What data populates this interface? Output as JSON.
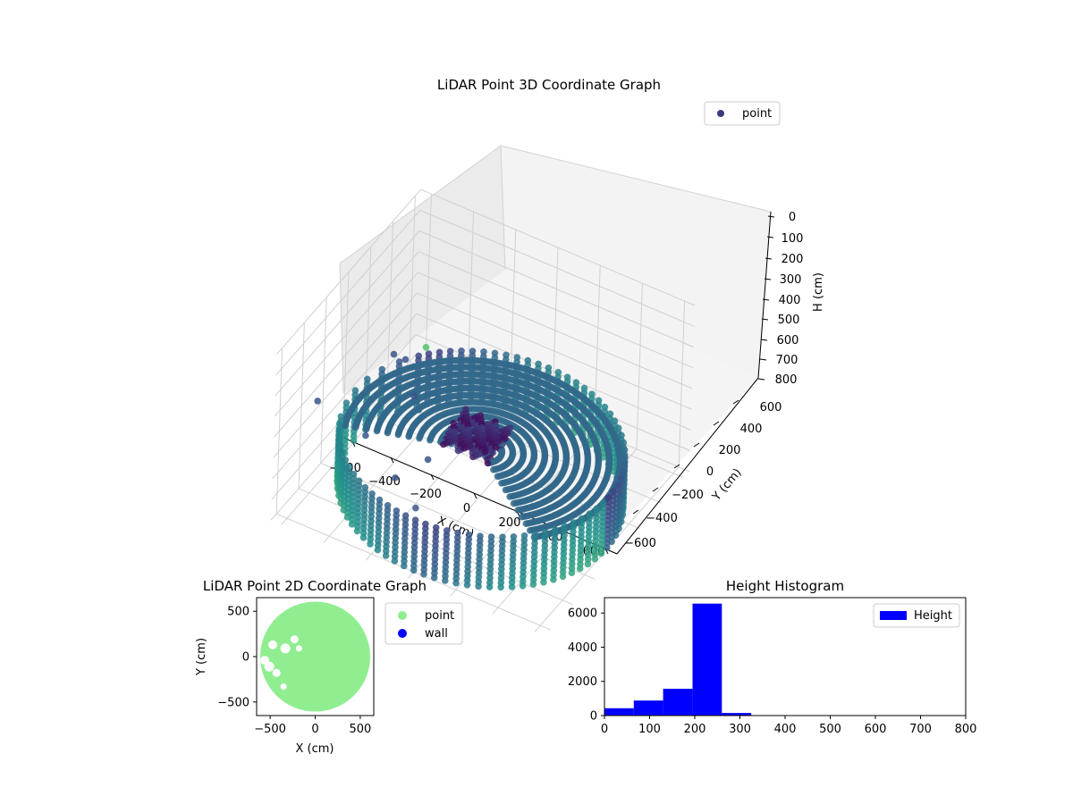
{
  "chart_data": [
    {
      "type": "scatter",
      "projection": "3d",
      "title": "LiDAR Point 3D Coordinate Graph",
      "xlabel": "X (cm)",
      "ylabel": "Y (cm)",
      "zlabel": "H (cm)",
      "xlim": [
        -650,
        650
      ],
      "ylim": [
        -650,
        650
      ],
      "zlim": [
        800,
        0
      ],
      "x_ticks": [
        "−600",
        "−400",
        "−200",
        "0",
        "200",
        "400",
        "600"
      ],
      "y_ticks": [
        "−600",
        "−400",
        "−200",
        "0",
        "200",
        "400",
        "600"
      ],
      "z_ticks": [
        "0",
        "100",
        "200",
        "300",
        "400",
        "500",
        "600",
        "700",
        "800"
      ],
      "series": [
        {
          "name": "point",
          "color": "#3b3a7e"
        }
      ],
      "legend_placement": "top-right",
      "colormap": "viridis",
      "grid": true,
      "wall_radius": 600,
      "wall_height_range": [
        0,
        250
      ],
      "point_height_cm": 220
    },
    {
      "type": "scatter",
      "title": "LiDAR Point 2D Coordinate Graph",
      "xlabel": "X (cm)",
      "ylabel": "Y (cm)",
      "xlim": [
        -650,
        650
      ],
      "ylim": [
        -650,
        650
      ],
      "x_ticks": [
        "−500",
        "0",
        "500"
      ],
      "y_ticks": [
        "500",
        "0",
        "−500"
      ],
      "series": [
        {
          "name": "point",
          "color": "#90ee90"
        },
        {
          "name": "wall",
          "color": "#0000ff"
        }
      ],
      "legend_placement": "outside-right",
      "region_radius": 610
    },
    {
      "type": "bar",
      "subtype": "histogram",
      "title": "Height Histogram",
      "xlim": [
        0,
        800
      ],
      "ylim": [
        0,
        6900
      ],
      "x_ticks": [
        "0",
        "100",
        "200",
        "300",
        "400",
        "500",
        "600",
        "700",
        "800"
      ],
      "y_ticks": [
        "0",
        "2000",
        "4000",
        "6000"
      ],
      "bin_edges": [
        0,
        65,
        130,
        195,
        260,
        325,
        390,
        455,
        520,
        585,
        650,
        715,
        780
      ],
      "values": [
        430,
        880,
        1570,
        6550,
        150,
        10,
        5,
        4,
        3,
        2,
        2,
        1
      ],
      "series": [
        {
          "name": "Height",
          "color": "#0000ff"
        }
      ],
      "legend_placement": "top-right"
    }
  ]
}
